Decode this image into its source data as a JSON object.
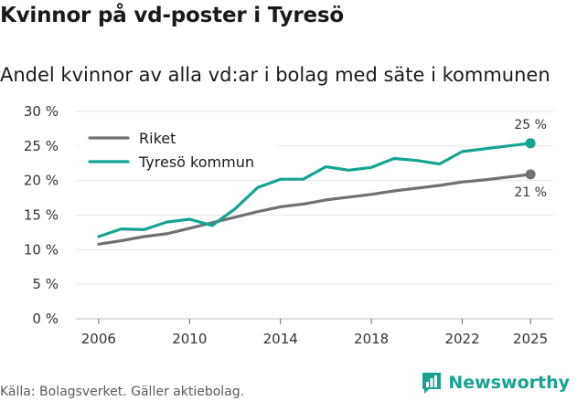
{
  "title": "Kvinnor på vd-poster i Tyresö",
  "subtitle": "Andel kvinnor av alla vd:ar i bolag med säte i kommunen",
  "source": "Källa: Bolagsverket. Gäller aktiebolag.",
  "brand": {
    "name": "Newsworthy",
    "icon": "newsworthy-logo-icon"
  },
  "colors": {
    "riket": "#717074",
    "tyreso": "#14a592",
    "grid": "#e6e6e6",
    "axis": "#999999"
  },
  "chart_data": {
    "type": "line",
    "title": "Kvinnor på vd-poster i Tyresö",
    "xlabel": "",
    "ylabel": "",
    "xlim": [
      2005,
      2026
    ],
    "ylim": [
      0,
      30
    ],
    "x_ticks": [
      "2006",
      "2010",
      "2014",
      "2018",
      "2022",
      "2025"
    ],
    "y_ticks": [
      "0 %",
      "5 %",
      "10 %",
      "15 %",
      "20 %",
      "25 %",
      "30 %"
    ],
    "grid": true,
    "legend_position": "top-left",
    "x": [
      2006,
      2007,
      2008,
      2009,
      2010,
      2011,
      2012,
      2013,
      2014,
      2015,
      2016,
      2017,
      2018,
      2019,
      2020,
      2021,
      2022,
      2023,
      2024,
      2025
    ],
    "series": [
      {
        "name": "Riket",
        "values": [
          10.8,
          11.3,
          11.9,
          12.3,
          13.1,
          13.9,
          14.7,
          15.5,
          16.2,
          16.6,
          17.2,
          17.6,
          18.0,
          18.5,
          18.9,
          19.3,
          19.8,
          20.1,
          20.5,
          20.9
        ],
        "end_label": "21 %"
      },
      {
        "name": "Tyresö kommun",
        "values": [
          11.9,
          13.0,
          12.9,
          14.0,
          14.4,
          13.5,
          15.9,
          19.0,
          20.2,
          20.2,
          22.0,
          21.5,
          21.9,
          23.2,
          22.9,
          22.4,
          24.2,
          24.6,
          25.0,
          25.4
        ],
        "end_label": "25 %"
      }
    ]
  }
}
